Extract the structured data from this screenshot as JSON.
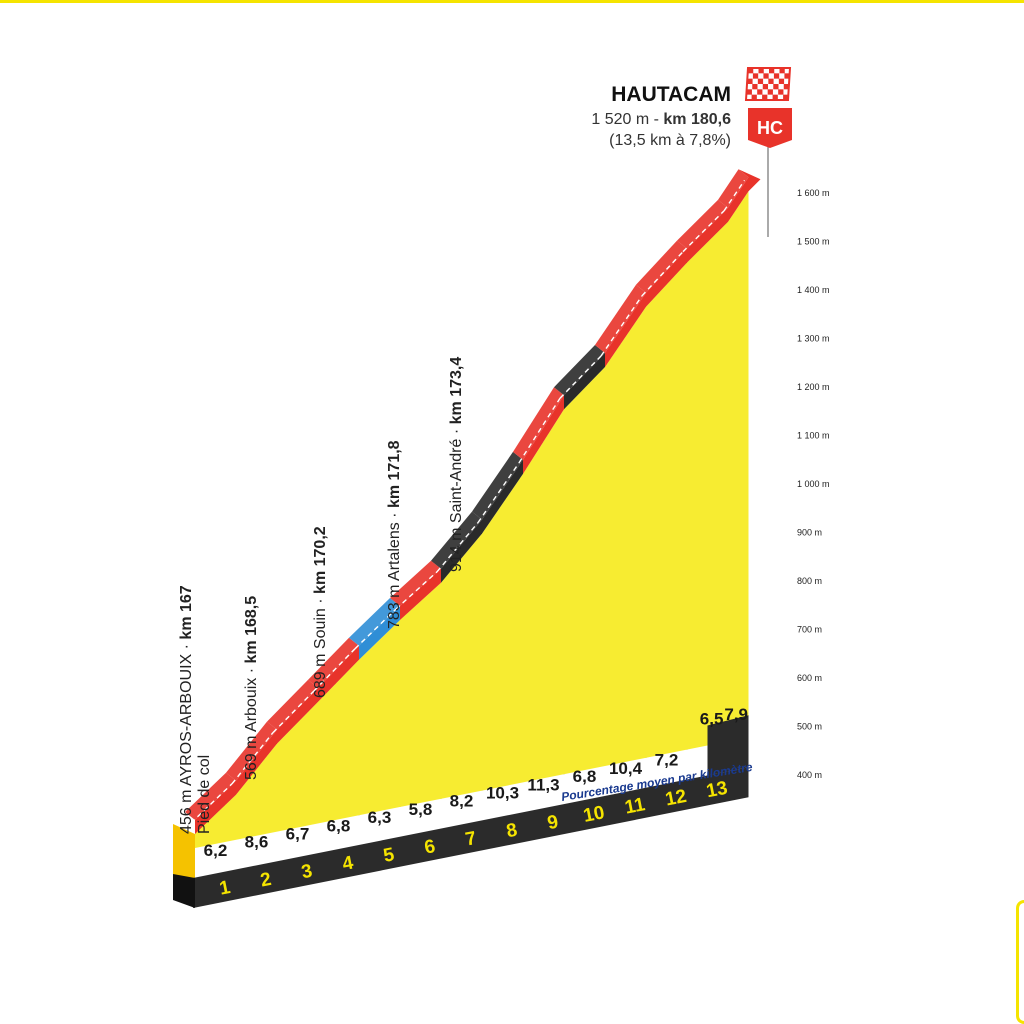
{
  "summit": {
    "name": "HAUTACAM",
    "altitude": "1 520 m - ",
    "km": "km 180,6",
    "climb": "(13,5 km à 7,8%)",
    "category": "HC"
  },
  "subtitle": "Pourcentage moyen par kilomètre",
  "colors": {
    "fill": "#f7ec31",
    "fill_side": "#f5c200",
    "base": "#2b2b2b",
    "grade_red": "#e8332a",
    "grade_black": "#2a2a2a",
    "grade_blue": "#2f8ed6"
  },
  "waypoints": [
    {
      "km_value": 0,
      "name": "456 m AYROS-ARBOUIX · ",
      "km": "km 167",
      "second_line": "Pied de col"
    },
    {
      "km_value": 1.5,
      "name": "569 m Arbouix · ",
      "km": "km 168,5",
      "second_line": ""
    },
    {
      "km_value": 3.2,
      "name": "689 m Souin · ",
      "km": "km 170,2",
      "second_line": ""
    },
    {
      "km_value": 4.8,
      "name": "783 m Artalens · ",
      "km": "km 171,8",
      "second_line": ""
    },
    {
      "km_value": 6.4,
      "name": "914 m Saint-André · ",
      "km": "km 173,4",
      "second_line": ""
    }
  ],
  "chart_data": {
    "type": "area",
    "title": "HAUTACAM",
    "xlabel": "",
    "ylabel": "",
    "x_unit": "km",
    "y_unit": "m",
    "ylim": [
      400,
      1600
    ],
    "y_ticks": [
      400,
      500,
      600,
      700,
      800,
      900,
      1000,
      1100,
      1200,
      1300,
      1400,
      1500,
      1600
    ],
    "y_tick_labels": [
      "400 m",
      "500 m",
      "600 m",
      "700 m",
      "800 m",
      "900 m",
      "1 000 m",
      "1 100 m",
      "1 200 m",
      "1 300 m",
      "1 400 m",
      "1 500 m",
      "1 600 m"
    ],
    "km_markers": [
      "1",
      "2",
      "3",
      "4",
      "5",
      "6",
      "7",
      "8",
      "9",
      "10",
      "11",
      "12",
      "13"
    ],
    "segments": [
      {
        "km": 1,
        "grade": "6,2",
        "class": "red"
      },
      {
        "km": 2,
        "grade": "8,6",
        "class": "red"
      },
      {
        "km": 3,
        "grade": "6,7",
        "class": "red"
      },
      {
        "km": 4,
        "grade": "6,8",
        "class": "red"
      },
      {
        "km": 5,
        "grade": "6,3",
        "class": "blue"
      },
      {
        "km": 6,
        "grade": "5,8",
        "class": "red"
      },
      {
        "km": 7,
        "grade": "8,2",
        "class": "black"
      },
      {
        "km": 8,
        "grade": "10,3",
        "class": "black"
      },
      {
        "km": 9,
        "grade": "11,3",
        "class": "red"
      },
      {
        "km": 10,
        "grade": "6,8",
        "class": "black"
      },
      {
        "km": 11,
        "grade": "10,4",
        "class": "red"
      },
      {
        "km": 12,
        "grade": "7,2",
        "class": "red"
      },
      {
        "km": 13.5,
        "grade": "6,5",
        "class": "red"
      },
      {
        "km": 13.5,
        "grade": "7,9",
        "class": "red"
      }
    ],
    "profile": [
      {
        "km": 0,
        "alt": 456
      },
      {
        "km": 1,
        "alt": 518
      },
      {
        "km": 2,
        "alt": 604
      },
      {
        "km": 3,
        "alt": 671
      },
      {
        "km": 4,
        "alt": 739
      },
      {
        "km": 5,
        "alt": 802
      },
      {
        "km": 6,
        "alt": 860
      },
      {
        "km": 7,
        "alt": 942
      },
      {
        "km": 8,
        "alt": 1045
      },
      {
        "km": 9,
        "alt": 1158
      },
      {
        "km": 10,
        "alt": 1226
      },
      {
        "km": 11,
        "alt": 1330
      },
      {
        "km": 12,
        "alt": 1402
      },
      {
        "km": 13,
        "alt": 1467
      },
      {
        "km": 13.5,
        "alt": 1520
      }
    ]
  }
}
